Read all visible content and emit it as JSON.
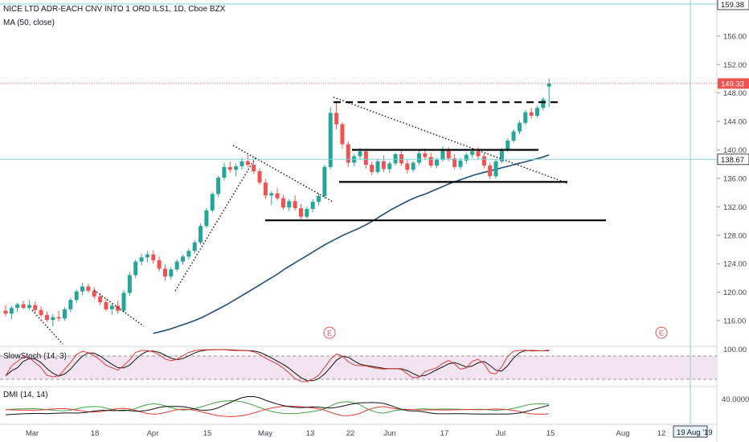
{
  "header": {
    "title": "NICE LTD ADR-EACH CNV INTO 1 ORD ILS1, 1D, Cboe BZX",
    "indicator": "MA (50, close)"
  },
  "panels": {
    "stoch_label": "SlowStoch (14, 3)",
    "dmi_label": "DMI (14, 14)"
  },
  "colors": {
    "up": "#26a69a",
    "down": "#ef5350",
    "ma": "#1f4e79",
    "crosshair": "#7fd3dc",
    "last_price": "#ef5350",
    "stoch_k": "#e53935",
    "stoch_d": "#111111",
    "dmi_plus": "#43a047",
    "dmi_minus": "#e53935",
    "adx": "#111111"
  },
  "axis_tags": {
    "top": "159.38",
    "last": "149.33",
    "crosshair": "138.67",
    "date": "19 Aug '19"
  },
  "chart_data": {
    "type": "candlestick",
    "title": "NICE LTD ADR-EACH CNV INTO 1 ORD ILS1, 1D, Cboe BZX",
    "ylim": [
      112.5,
      160.5
    ],
    "y_ticks": [
      "156.00",
      "152.00",
      "148.00",
      "144.00",
      "140.00",
      "136.00",
      "132.00",
      "128.00",
      "124.00",
      "120.00",
      "116.00"
    ],
    "x_ticks": [
      "Mar",
      "18",
      "Apr",
      "15",
      "May",
      "13",
      "22",
      "Jun",
      "17",
      "Jul",
      "15",
      "Aug",
      "12"
    ],
    "candles": [
      [
        117.4,
        118.2,
        116.6,
        117.0
      ],
      [
        117.0,
        118.1,
        116.2,
        117.8
      ],
      [
        117.8,
        118.5,
        117.2,
        118.3
      ],
      [
        118.3,
        118.8,
        117.6,
        117.8
      ],
      [
        117.8,
        118.9,
        117.5,
        118.2
      ],
      [
        118.2,
        118.7,
        117.1,
        117.5
      ],
      [
        117.5,
        118.0,
        116.5,
        116.8
      ],
      [
        116.8,
        117.3,
        115.8,
        116.1
      ],
      [
        116.1,
        116.9,
        115.2,
        116.5
      ],
      [
        116.5,
        117.4,
        115.9,
        116.3
      ],
      [
        116.3,
        117.9,
        116.0,
        117.6
      ],
      [
        117.6,
        119.2,
        117.2,
        118.9
      ],
      [
        118.9,
        120.4,
        118.5,
        120.1
      ],
      [
        120.1,
        121.3,
        119.6,
        120.8
      ],
      [
        120.8,
        121.2,
        119.9,
        120.2
      ],
      [
        120.2,
        120.7,
        119.0,
        119.4
      ],
      [
        119.4,
        119.9,
        118.2,
        118.6
      ],
      [
        118.6,
        119.1,
        117.3,
        117.6
      ],
      [
        117.6,
        118.4,
        116.8,
        118.1
      ],
      [
        118.1,
        118.8,
        117.0,
        117.4
      ],
      [
        117.4,
        120.3,
        117.1,
        119.9
      ],
      [
        119.9,
        122.8,
        119.5,
        122.4
      ],
      [
        122.4,
        124.6,
        122.0,
        124.3
      ],
      [
        124.3,
        125.4,
        123.8,
        124.9
      ],
      [
        124.9,
        125.8,
        124.2,
        125.3
      ],
      [
        125.3,
        125.9,
        124.0,
        124.5
      ],
      [
        124.5,
        125.0,
        122.9,
        123.3
      ],
      [
        123.3,
        123.9,
        121.6,
        122.2
      ],
      [
        122.2,
        123.5,
        121.8,
        123.2
      ],
      [
        123.2,
        124.6,
        122.9,
        124.3
      ],
      [
        124.3,
        125.3,
        123.9,
        125.0
      ],
      [
        125.0,
        126.1,
        124.6,
        125.8
      ],
      [
        125.8,
        127.3,
        125.4,
        127.0
      ],
      [
        127.0,
        129.6,
        126.7,
        129.3
      ],
      [
        129.3,
        131.8,
        129.0,
        131.5
      ],
      [
        131.5,
        134.1,
        131.2,
        133.8
      ],
      [
        133.8,
        136.4,
        133.4,
        136.1
      ],
      [
        136.1,
        138.2,
        135.7,
        137.6
      ],
      [
        137.6,
        138.4,
        136.8,
        137.2
      ],
      [
        137.2,
        138.1,
        136.3,
        137.7
      ],
      [
        137.7,
        138.9,
        137.2,
        138.4
      ],
      [
        138.4,
        139.3,
        137.5,
        137.9
      ],
      [
        137.9,
        138.4,
        136.6,
        137.0
      ],
      [
        137.0,
        137.4,
        135.1,
        135.4
      ],
      [
        135.4,
        135.9,
        133.1,
        133.6
      ],
      [
        133.6,
        134.2,
        132.3,
        133.9
      ],
      [
        133.9,
        134.6,
        132.9,
        133.2
      ],
      [
        133.2,
        133.7,
        131.6,
        131.9
      ],
      [
        131.9,
        133.1,
        131.4,
        132.8
      ],
      [
        132.8,
        133.6,
        131.5,
        131.8
      ],
      [
        131.8,
        132.4,
        130.2,
        130.6
      ],
      [
        130.6,
        132.0,
        130.3,
        131.7
      ],
      [
        131.7,
        133.1,
        131.2,
        132.7
      ],
      [
        132.7,
        133.9,
        132.2,
        133.5
      ],
      [
        133.5,
        137.9,
        133.2,
        137.6
      ],
      [
        137.6,
        146.0,
        137.3,
        145.2
      ],
      [
        145.2,
        146.8,
        142.9,
        143.6
      ],
      [
        143.6,
        143.9,
        140.2,
        140.8
      ],
      [
        140.8,
        141.2,
        137.6,
        138.2
      ],
      [
        138.2,
        139.4,
        137.7,
        139.1
      ],
      [
        139.1,
        140.3,
        138.7,
        139.8
      ],
      [
        139.8,
        140.2,
        137.4,
        137.9
      ],
      [
        137.9,
        138.3,
        136.5,
        136.9
      ],
      [
        136.9,
        138.8,
        136.6,
        138.4
      ],
      [
        138.4,
        139.2,
        136.9,
        137.3
      ],
      [
        137.3,
        138.4,
        136.8,
        138.1
      ],
      [
        138.1,
        139.6,
        137.8,
        139.4
      ],
      [
        139.4,
        140.1,
        137.8,
        138.1
      ],
      [
        138.1,
        138.6,
        136.7,
        137.2
      ],
      [
        137.2,
        138.4,
        136.9,
        138.2
      ],
      [
        138.2,
        139.9,
        137.9,
        139.5
      ],
      [
        139.5,
        140.2,
        138.6,
        139.0
      ],
      [
        139.0,
        139.6,
        137.5,
        137.8
      ],
      [
        137.8,
        138.9,
        137.4,
        138.6
      ],
      [
        138.6,
        140.5,
        138.3,
        140.1
      ],
      [
        140.1,
        140.4,
        138.4,
        138.8
      ],
      [
        138.8,
        139.4,
        137.3,
        137.6
      ],
      [
        137.6,
        138.9,
        137.2,
        138.5
      ],
      [
        138.5,
        139.6,
        138.1,
        139.3
      ],
      [
        139.3,
        140.2,
        138.9,
        139.8
      ],
      [
        139.8,
        140.4,
        138.7,
        139.1
      ],
      [
        139.1,
        139.5,
        137.4,
        137.8
      ],
      [
        137.8,
        138.2,
        135.9,
        136.3
      ],
      [
        136.3,
        138.7,
        136.0,
        138.4
      ],
      [
        138.4,
        140.3,
        138.1,
        140.0
      ],
      [
        140.0,
        141.6,
        139.7,
        141.3
      ],
      [
        141.3,
        142.9,
        141.0,
        142.6
      ],
      [
        142.6,
        144.1,
        142.2,
        143.8
      ],
      [
        143.8,
        145.6,
        143.5,
        145.3
      ],
      [
        145.3,
        145.9,
        144.4,
        144.8
      ],
      [
        144.8,
        146.2,
        144.5,
        145.9
      ],
      [
        145.9,
        147.4,
        145.6,
        147.1
      ],
      [
        148.9,
        150.0,
        146.0,
        149.33
      ]
    ],
    "ma50": [
      114.2,
      114.5,
      114.8,
      115.2,
      115.6,
      116.0,
      116.5,
      117.1,
      117.7,
      118.3,
      119.0,
      119.7,
      120.4,
      121.1,
      121.8,
      122.5,
      123.3,
      124.0,
      124.7,
      125.4,
      126.1,
      126.8,
      127.4,
      128.0,
      128.5,
      129.0,
      129.6,
      130.3,
      131.0,
      131.7,
      132.3,
      132.9,
      133.4,
      133.8,
      134.3,
      134.8,
      135.3,
      135.7,
      136.1,
      136.5,
      136.8,
      137.1,
      137.4,
      137.7,
      138.0,
      138.3,
      138.6,
      138.9,
      139.3
    ],
    "levels": {
      "resistance": 146.7,
      "range_top": 140.0,
      "range_bottom": 135.5,
      "support": 130.1,
      "crosshair": 138.67,
      "last_price": 149.33
    },
    "stoch_ylim": [
      0,
      100
    ],
    "stoch_ticks": [
      "100.00"
    ],
    "dmi_ticks": [
      "40.0000"
    ]
  }
}
